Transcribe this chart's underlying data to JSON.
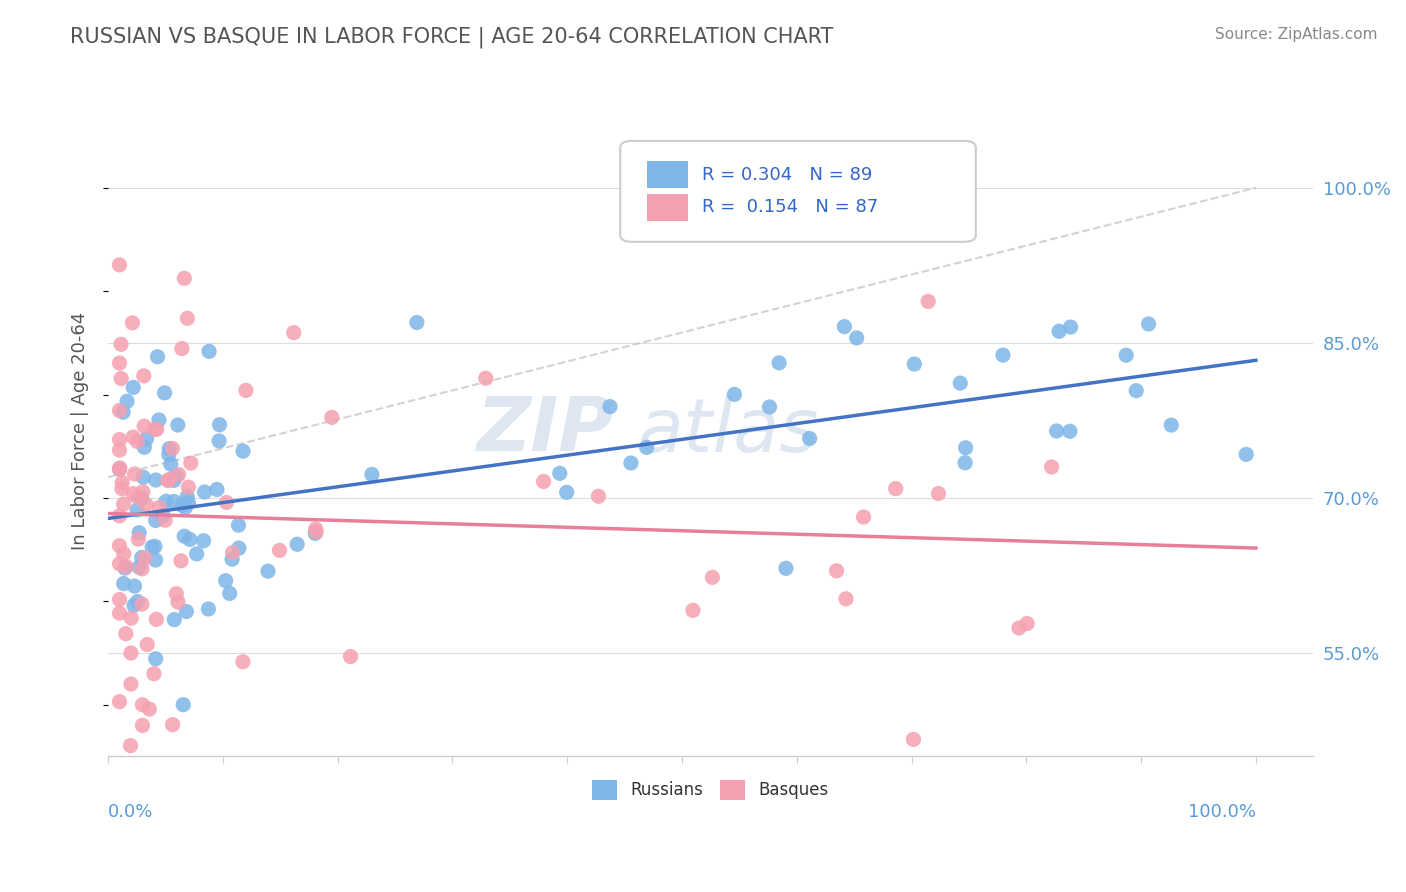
{
  "title": "RUSSIAN VS BASQUE IN LABOR FORCE | AGE 20-64 CORRELATION CHART",
  "source": "Source: ZipAtlas.com",
  "ylabel": "In Labor Force | Age 20-64",
  "ytick_values": [
    0.55,
    0.7,
    0.85,
    1.0
  ],
  "ytick_labels": [
    "55.0%",
    "70.0%",
    "85.0%",
    "100.0%"
  ],
  "xlim": [
    0.0,
    1.05
  ],
  "ylim": [
    0.45,
    1.08
  ],
  "legend_r_russian": "R = 0.304",
  "legend_n_russian": "N = 89",
  "legend_r_basque": "R =  0.154",
  "legend_n_basque": "N = 87",
  "color_russian": "#7EB6E8",
  "color_basque": "#F5A0B0",
  "color_trendline_russian": "#4472C4",
  "color_trendline_basque": "#E87E9A",
  "color_dashed": "#C0C0C0",
  "watermark_zip": "ZIP",
  "watermark_atlas": "atlas",
  "title_color": "#555555",
  "axis_label_color": "#5B9BD5",
  "legend_text_color": "#3366CC"
}
